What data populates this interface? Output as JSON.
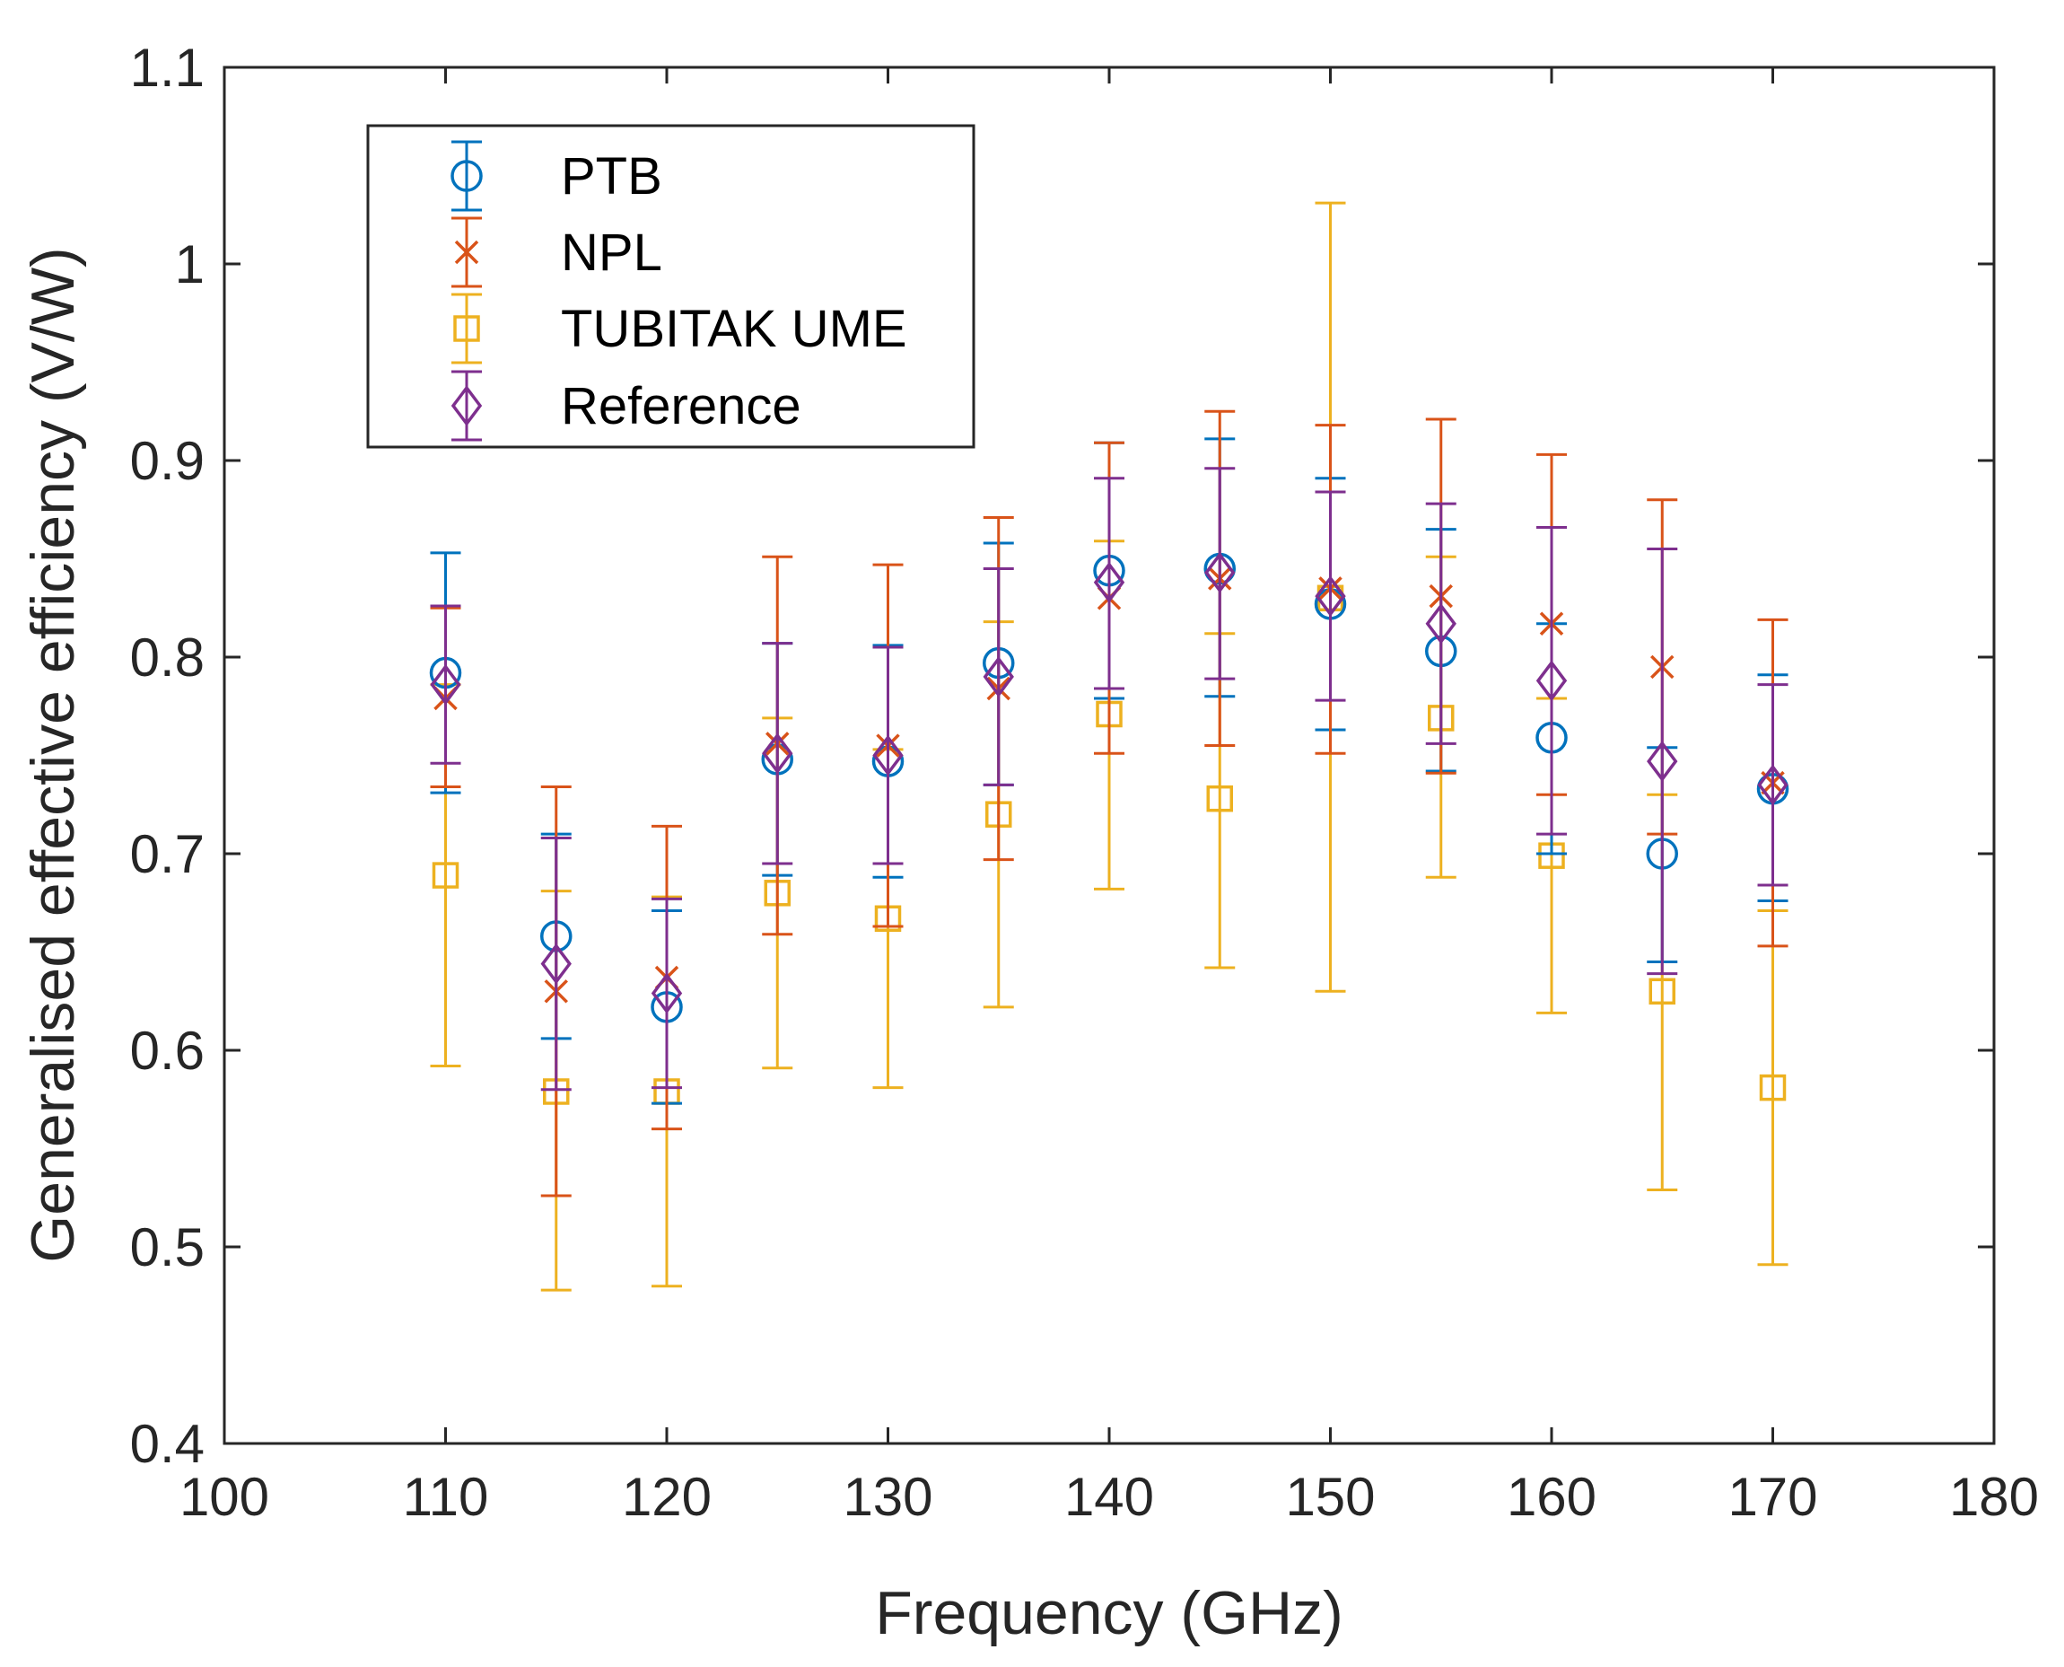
{
  "chart_data": {
    "type": "scatter",
    "title": "",
    "xlabel": "Frequency (GHz)",
    "ylabel": "Generalised effective efficiency (V/W)",
    "xlim": [
      100,
      180
    ],
    "ylim": [
      0.4,
      1.1
    ],
    "xticks": [
      100,
      110,
      120,
      130,
      140,
      150,
      160,
      170,
      180
    ],
    "yticks": [
      0.4,
      0.5,
      0.6,
      0.7,
      0.8,
      0.9,
      1.0,
      1.1
    ],
    "xtick_labels": [
      "100",
      "110",
      "120",
      "130",
      "140",
      "150",
      "160",
      "170",
      "180"
    ],
    "ytick_labels": [
      "0.4",
      "0.5",
      "0.6",
      "0.7",
      "0.8",
      "0.9",
      "1",
      "1.1"
    ],
    "grid": false,
    "error_bars": true,
    "legend_position": "top-left",
    "x": [
      110,
      115,
      120,
      125,
      130,
      135,
      140,
      145,
      150,
      155,
      160,
      165,
      170
    ],
    "series": [
      {
        "name": "PTB",
        "marker": "circle",
        "color": "#0072BD",
        "values": [
          0.792,
          0.658,
          0.622,
          0.748,
          0.747,
          0.797,
          0.844,
          0.845,
          0.827,
          0.803,
          0.759,
          0.7,
          0.733
        ],
        "lower": [
          0.731,
          0.606,
          0.573,
          0.689,
          0.688,
          0.735,
          0.779,
          0.78,
          0.763,
          0.742,
          0.7,
          0.645,
          0.676
        ],
        "upper": [
          0.853,
          0.71,
          0.671,
          0.807,
          0.806,
          0.858,
          0.909,
          0.911,
          0.891,
          0.865,
          0.817,
          0.754,
          0.791
        ]
      },
      {
        "name": "NPL",
        "marker": "cross",
        "color": "#D95319",
        "values": [
          0.779,
          0.63,
          0.637,
          0.756,
          0.755,
          0.784,
          0.83,
          0.84,
          0.835,
          0.831,
          0.817,
          0.795,
          0.736
        ],
        "lower": [
          0.734,
          0.526,
          0.56,
          0.659,
          0.663,
          0.697,
          0.751,
          0.755,
          0.751,
          0.741,
          0.73,
          0.71,
          0.653
        ],
        "upper": [
          0.825,
          0.734,
          0.714,
          0.851,
          0.847,
          0.871,
          0.909,
          0.925,
          0.918,
          0.921,
          0.903,
          0.88,
          0.819
        ]
      },
      {
        "name": "TUBITAK UME",
        "marker": "square",
        "color": "#EDB120",
        "values": [
          0.689,
          0.579,
          0.579,
          0.68,
          0.667,
          0.72,
          0.771,
          0.728,
          0.83,
          0.769,
          0.699,
          0.63,
          0.581
        ],
        "lower": [
          0.592,
          0.478,
          0.48,
          0.591,
          0.581,
          0.622,
          0.682,
          0.642,
          0.63,
          0.688,
          0.619,
          0.529,
          0.491
        ],
        "upper": [
          0.786,
          0.681,
          0.678,
          0.769,
          0.753,
          0.818,
          0.859,
          0.812,
          1.031,
          0.851,
          0.779,
          0.73,
          0.671
        ]
      },
      {
        "name": "Reference",
        "marker": "diamond",
        "color": "#7E2F8E",
        "values": [
          0.786,
          0.644,
          0.629,
          0.751,
          0.75,
          0.79,
          0.838,
          0.843,
          0.831,
          0.817,
          0.788,
          0.747,
          0.735
        ],
        "lower": [
          0.746,
          0.58,
          0.581,
          0.695,
          0.695,
          0.735,
          0.784,
          0.789,
          0.778,
          0.756,
          0.71,
          0.639,
          0.684
        ],
        "upper": [
          0.826,
          0.708,
          0.677,
          0.807,
          0.805,
          0.845,
          0.891,
          0.896,
          0.884,
          0.878,
          0.866,
          0.855,
          0.786
        ]
      }
    ]
  }
}
